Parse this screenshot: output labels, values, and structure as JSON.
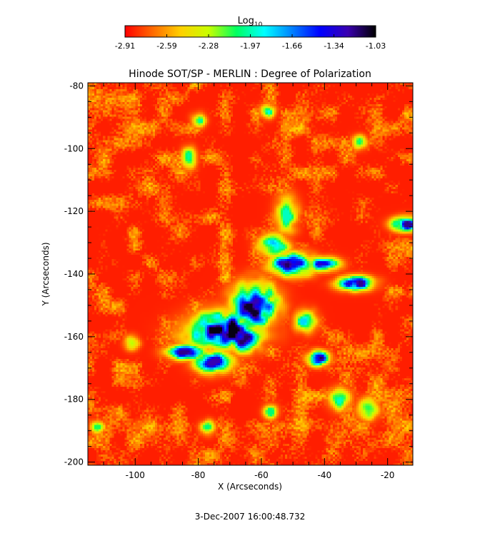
{
  "colorbar": {
    "label_base": "Log",
    "label_sub": "10",
    "ticks": [
      "-2.91",
      "-2.59",
      "-2.28",
      "-1.97",
      "-1.66",
      "-1.34",
      "-1.03"
    ],
    "colormap": [
      "#ff0000",
      "#ff6a00",
      "#ffd000",
      "#c8ff00",
      "#00ff60",
      "#00ffff",
      "#0080ff",
      "#0000ff",
      "#3a00b0",
      "#000000"
    ]
  },
  "chart_data": {
    "type": "heatmap",
    "title": "Hinode SOT/SP - MERLIN : Degree of Polarization",
    "xlabel": "X (Arcseconds)",
    "ylabel": "Y (Arcseconds)",
    "xlim": [
      -115,
      -12
    ],
    "ylim": [
      -201,
      -79
    ],
    "xticks": [
      -100,
      -80,
      -60,
      -40,
      -20
    ],
    "yticks": [
      -80,
      -100,
      -120,
      -140,
      -160,
      -180,
      -200
    ],
    "color_scale": "log10",
    "color_range": [
      -2.91,
      -1.03
    ],
    "background_level": -2.85,
    "features": [
      {
        "type": "plage",
        "x": -72,
        "y": -158,
        "level": -1.05,
        "rx": 10,
        "ry": 5
      },
      {
        "type": "plage",
        "x": -62,
        "y": -150,
        "level": -1.08,
        "rx": 6,
        "ry": 6
      },
      {
        "type": "plage",
        "x": -84,
        "y": -165,
        "level": -1.2,
        "rx": 5,
        "ry": 2
      },
      {
        "type": "plage",
        "x": -75,
        "y": -168,
        "level": -1.25,
        "rx": 5,
        "ry": 3
      },
      {
        "type": "plage",
        "x": -66,
        "y": -160,
        "level": -1.15,
        "rx": 5,
        "ry": 4
      },
      {
        "type": "plage",
        "x": -50,
        "y": -137,
        "level": -1.15,
        "rx": 6,
        "ry": 3
      },
      {
        "type": "plage",
        "x": -30,
        "y": -143,
        "level": -1.2,
        "rx": 5,
        "ry": 2
      },
      {
        "type": "plage",
        "x": -40,
        "y": -137,
        "level": -1.3,
        "rx": 4,
        "ry": 2
      },
      {
        "type": "plage",
        "x": -42,
        "y": -167,
        "level": -1.15,
        "rx": 3,
        "ry": 2
      },
      {
        "type": "plage",
        "x": -14,
        "y": -124,
        "level": -1.2,
        "rx": 4,
        "ry": 2
      },
      {
        "type": "network",
        "x": -56,
        "y": -131,
        "level": -1.7,
        "rx": 4,
        "ry": 3
      },
      {
        "type": "network",
        "x": -52,
        "y": -121,
        "level": -1.95,
        "rx": 3,
        "ry": 5
      },
      {
        "type": "network",
        "x": -46,
        "y": -155,
        "level": -1.8,
        "rx": 3,
        "ry": 3
      },
      {
        "type": "network",
        "x": -83,
        "y": -103,
        "level": -2.0,
        "rx": 2,
        "ry": 3
      },
      {
        "type": "network",
        "x": -80,
        "y": -91,
        "level": -2.0,
        "rx": 2,
        "ry": 2
      },
      {
        "type": "network",
        "x": -58,
        "y": -88,
        "level": -1.9,
        "rx": 2,
        "ry": 2
      },
      {
        "type": "network",
        "x": -29,
        "y": -98,
        "level": -2.0,
        "rx": 2,
        "ry": 2
      },
      {
        "type": "network",
        "x": -35,
        "y": -180,
        "level": -1.95,
        "rx": 3,
        "ry": 3
      },
      {
        "type": "network",
        "x": -57,
        "y": -184,
        "level": -2.05,
        "rx": 2,
        "ry": 2
      },
      {
        "type": "network",
        "x": -26,
        "y": -183,
        "level": -2.0,
        "rx": 3,
        "ry": 3
      },
      {
        "type": "network",
        "x": -77,
        "y": -189,
        "level": -2.05,
        "rx": 2,
        "ry": 2
      },
      {
        "type": "network",
        "x": -101,
        "y": -162,
        "level": -2.1,
        "rx": 2,
        "ry": 2
      },
      {
        "type": "network",
        "x": -112,
        "y": -189,
        "level": -2.1,
        "rx": 2,
        "ry": 2
      }
    ]
  },
  "timestamp": "3-Dec-2007 16:00:48.732"
}
